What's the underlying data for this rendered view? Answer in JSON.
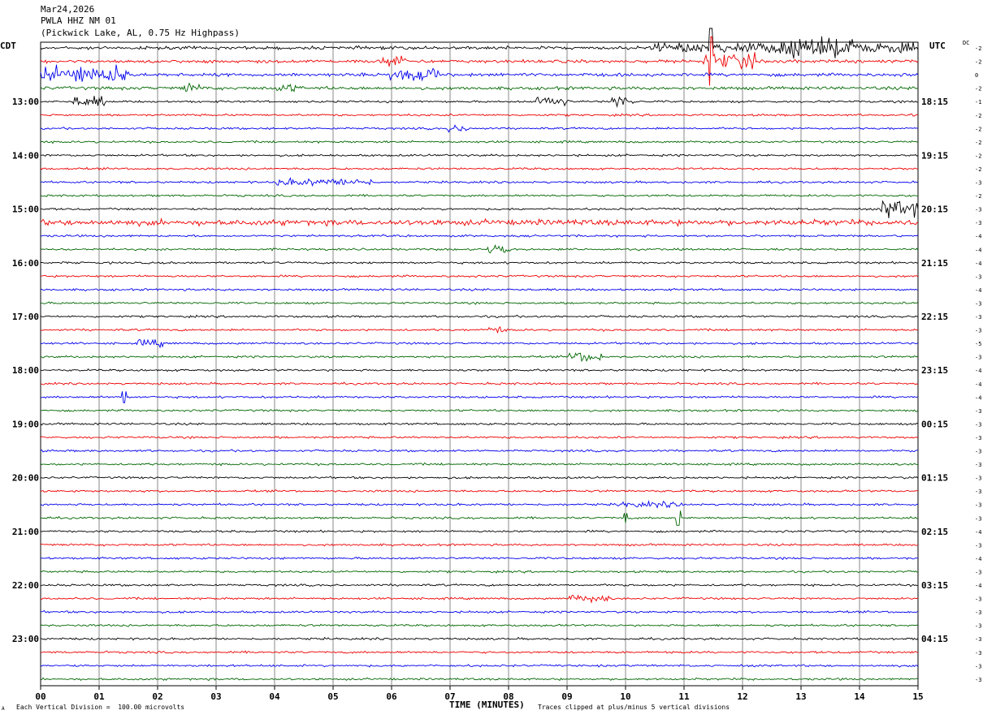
{
  "header": {
    "date": "Mar24,2026",
    "station": "PWLA HHZ NM 01",
    "location": "(Pickwick Lake, AL, 0.75 Hz Highpass)"
  },
  "left_tz": "CDT",
  "right_tz": "UTC",
  "dc_label": "DC",
  "footer": {
    "scale_note": "Each Vertical Division =  100.00 microvolts",
    "clip_note": "Traces clipped at plus/minus 5 vertical divisions",
    "corner_mark": "A"
  },
  "colors": {
    "trace": [
      "#000000",
      "#ee0000",
      "#0000ee",
      "#006600"
    ],
    "grid": "#888888"
  },
  "chart_data": {
    "type": "line",
    "title": "PWLA HHZ NM 01",
    "xlabel": "TIME (MINUTES)",
    "xlim": [
      0,
      15
    ],
    "x_ticks": [
      "00",
      "01",
      "02",
      "03",
      "04",
      "05",
      "06",
      "07",
      "08",
      "09",
      "10",
      "11",
      "12",
      "13",
      "14",
      "15"
    ],
    "traces_per_hour": 4,
    "minutes_per_trace": 15,
    "left_hour_labels": [
      "13:00",
      "14:00",
      "15:00",
      "16:00",
      "17:00",
      "18:00",
      "19:00",
      "20:00",
      "21:00",
      "22:00",
      "23:00"
    ],
    "right_hour_labels": [
      "18:15",
      "19:15",
      "20:15",
      "21:15",
      "22:15",
      "23:15",
      "00:15",
      "01:15",
      "02:15",
      "03:15",
      "04:15"
    ],
    "dc_offsets": [
      "-2",
      "-2",
      "0",
      "-2",
      "-1",
      "-2",
      "-2",
      "-2",
      "-2",
      "-2",
      "-3",
      "-2",
      "-3",
      "-3",
      "-4",
      "-4",
      "-4",
      "-3",
      "-4",
      "-3",
      "-3",
      "-3",
      "-5",
      "-3",
      "-4",
      "-4",
      "-4",
      "-3",
      "-3",
      "-3",
      "-3",
      "-3",
      "-3",
      "-3",
      "-3",
      "-3",
      "-4",
      "-3",
      "-4",
      "-3",
      "-4",
      "-3",
      "-3",
      "-3",
      "-3",
      "-3",
      "-3",
      "-3"
    ],
    "first_trace_label_index": 4
  }
}
